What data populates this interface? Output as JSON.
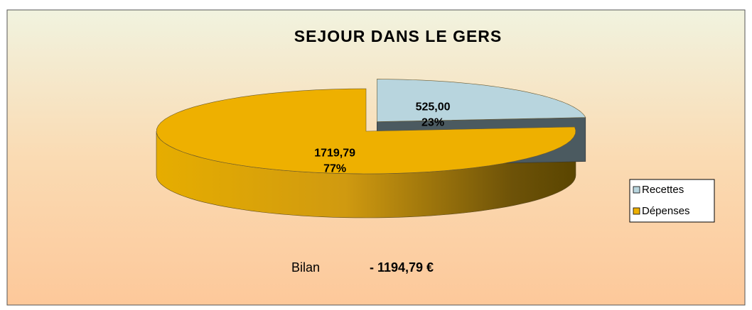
{
  "chart_data": {
    "type": "pie3d",
    "title": "SEJOUR DANS LE GERS",
    "categories": [
      "Recettes",
      "Dépenses"
    ],
    "values": [
      525,
      1719.79
    ],
    "value_labels": [
      "525,00",
      "1719,79"
    ],
    "percent_labels": [
      "23%",
      "77%"
    ],
    "colors": [
      "#b8d5de",
      "#eeb000"
    ],
    "side_colors": [
      "#4b5a60",
      "#7a5800"
    ],
    "exploded": [
      true,
      false
    ],
    "legend": "right",
    "annotation": {
      "label": "Bilan",
      "value": "- 1194,79 €"
    }
  }
}
